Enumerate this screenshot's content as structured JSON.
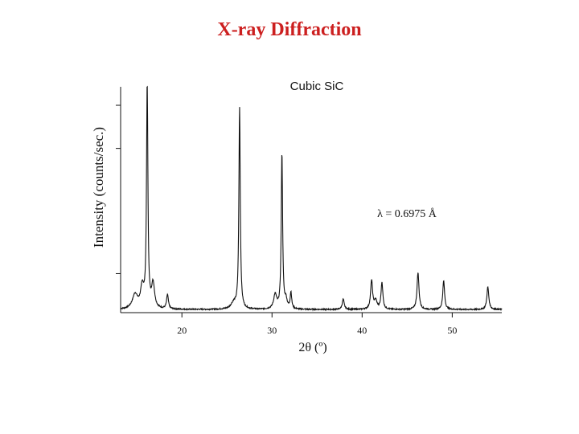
{
  "slide": {
    "title": "X-ray Diffraction"
  },
  "chart_data": {
    "type": "line",
    "title": "Cubic SiC",
    "annotation": "λ = 0.6975 Å",
    "xlabel": "2θ (º)",
    "ylabel": "Intensity (counts/sec.)",
    "xlim": [
      13.2,
      55.5
    ],
    "ylim": [
      0,
      110
    ],
    "x_ticks": [
      20,
      30,
      40,
      50
    ],
    "x_tick_labels": [
      "20",
      "30",
      "40",
      "50"
    ],
    "y_tick_values": [
      19,
      80,
      101
    ],
    "y_tick_labels": [],
    "grid": false,
    "baseline": 1.5,
    "peaks": [
      {
        "x": 14.8,
        "height": 7,
        "width": 0.35
      },
      {
        "x": 15.6,
        "height": 10,
        "width": 0.22
      },
      {
        "x": 16.15,
        "height": 110,
        "width": 0.09
      },
      {
        "x": 16.8,
        "height": 12,
        "width": 0.2
      },
      {
        "x": 18.4,
        "height": 7,
        "width": 0.12
      },
      {
        "x": 25.75,
        "height": 3,
        "width": 0.35
      },
      {
        "x": 26.4,
        "height": 98,
        "width": 0.09
      },
      {
        "x": 30.35,
        "height": 7,
        "width": 0.2
      },
      {
        "x": 31.1,
        "height": 76,
        "width": 0.09
      },
      {
        "x": 31.55,
        "height": 4,
        "width": 0.15
      },
      {
        "x": 32.1,
        "height": 8,
        "width": 0.1
      },
      {
        "x": 37.9,
        "height": 5,
        "width": 0.13
      },
      {
        "x": 41.05,
        "height": 14,
        "width": 0.13
      },
      {
        "x": 41.5,
        "height": 4,
        "width": 0.18
      },
      {
        "x": 42.2,
        "height": 13,
        "width": 0.12
      },
      {
        "x": 46.2,
        "height": 18,
        "width": 0.13
      },
      {
        "x": 49.05,
        "height": 14,
        "width": 0.12
      },
      {
        "x": 53.95,
        "height": 11,
        "width": 0.13
      }
    ]
  }
}
